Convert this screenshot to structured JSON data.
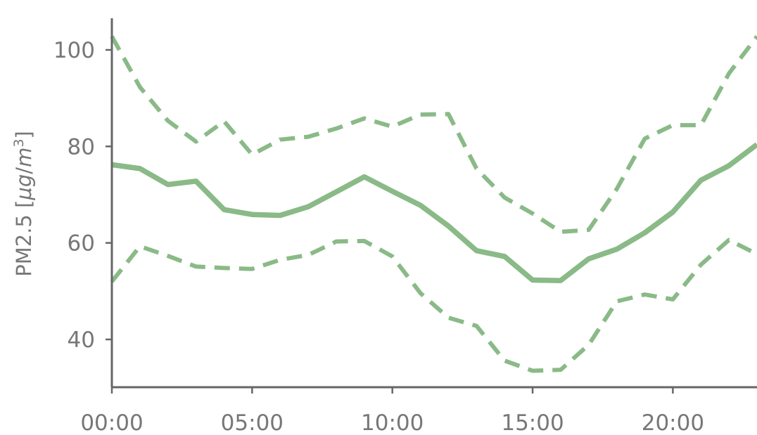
{
  "chart_data": {
    "type": "line",
    "title": "",
    "xlabel": "",
    "ylabel": "PM2.5 [μg/m³]",
    "ylabel_parts": {
      "base": "PM2.5 [",
      "unit_mu": "μ",
      "unit_g": "g",
      "slash": "/",
      "unit_m": "m",
      "exponent": "3",
      "close": "]"
    },
    "x": [
      0,
      1,
      2,
      3,
      4,
      5,
      6,
      7,
      8,
      9,
      10,
      11,
      12,
      13,
      14,
      15,
      16,
      17,
      18,
      19,
      20,
      21,
      22,
      23
    ],
    "xlim": [
      0,
      23
    ],
    "ylim": [
      30,
      105
    ],
    "x_ticks": [
      {
        "value": 0,
        "label": "00:00"
      },
      {
        "value": 5,
        "label": "05:00"
      },
      {
        "value": 10,
        "label": "10:00"
      },
      {
        "value": 15,
        "label": "15:00"
      },
      {
        "value": 20,
        "label": "20:00"
      }
    ],
    "y_ticks": [
      {
        "value": 40,
        "label": "40"
      },
      {
        "value": 60,
        "label": "60"
      },
      {
        "value": 80,
        "label": "80"
      },
      {
        "value": 100,
        "label": "100"
      }
    ],
    "grid": false,
    "legend": "none",
    "series": [
      {
        "style": "solid",
        "color": "#8aba87",
        "values": [
          76.2,
          75.4,
          72.1,
          72.8,
          66.9,
          65.9,
          65.7,
          67.5,
          70.6,
          73.7,
          70.7,
          67.8,
          63.5,
          58.4,
          57.2,
          52.3,
          52.2,
          56.7,
          58.7,
          62.1,
          66.4,
          73.0,
          76.0,
          80.4
        ]
      },
      {
        "style": "dashed",
        "color": "#8aba87",
        "values": [
          102.8,
          92.3,
          85.3,
          81.0,
          85.2,
          78.3,
          81.4,
          82.0,
          83.7,
          85.8,
          84.1,
          86.6,
          86.7,
          75.4,
          69.4,
          66.1,
          62.3,
          62.7,
          71.2,
          81.6,
          84.4,
          84.4,
          95.1,
          102.8
        ]
      },
      {
        "style": "dashed",
        "color": "#8aba87",
        "values": [
          52.0,
          59.3,
          57.3,
          55.1,
          54.8,
          54.6,
          56.5,
          57.5,
          60.3,
          60.4,
          57.2,
          49.6,
          44.5,
          42.8,
          35.6,
          33.5,
          33.7,
          38.9,
          47.9,
          49.3,
          48.3,
          55.5,
          60.6,
          57.7
        ]
      }
    ],
    "colors": {
      "line": "#8aba87",
      "axis": "#666666",
      "text": "#777777"
    }
  }
}
